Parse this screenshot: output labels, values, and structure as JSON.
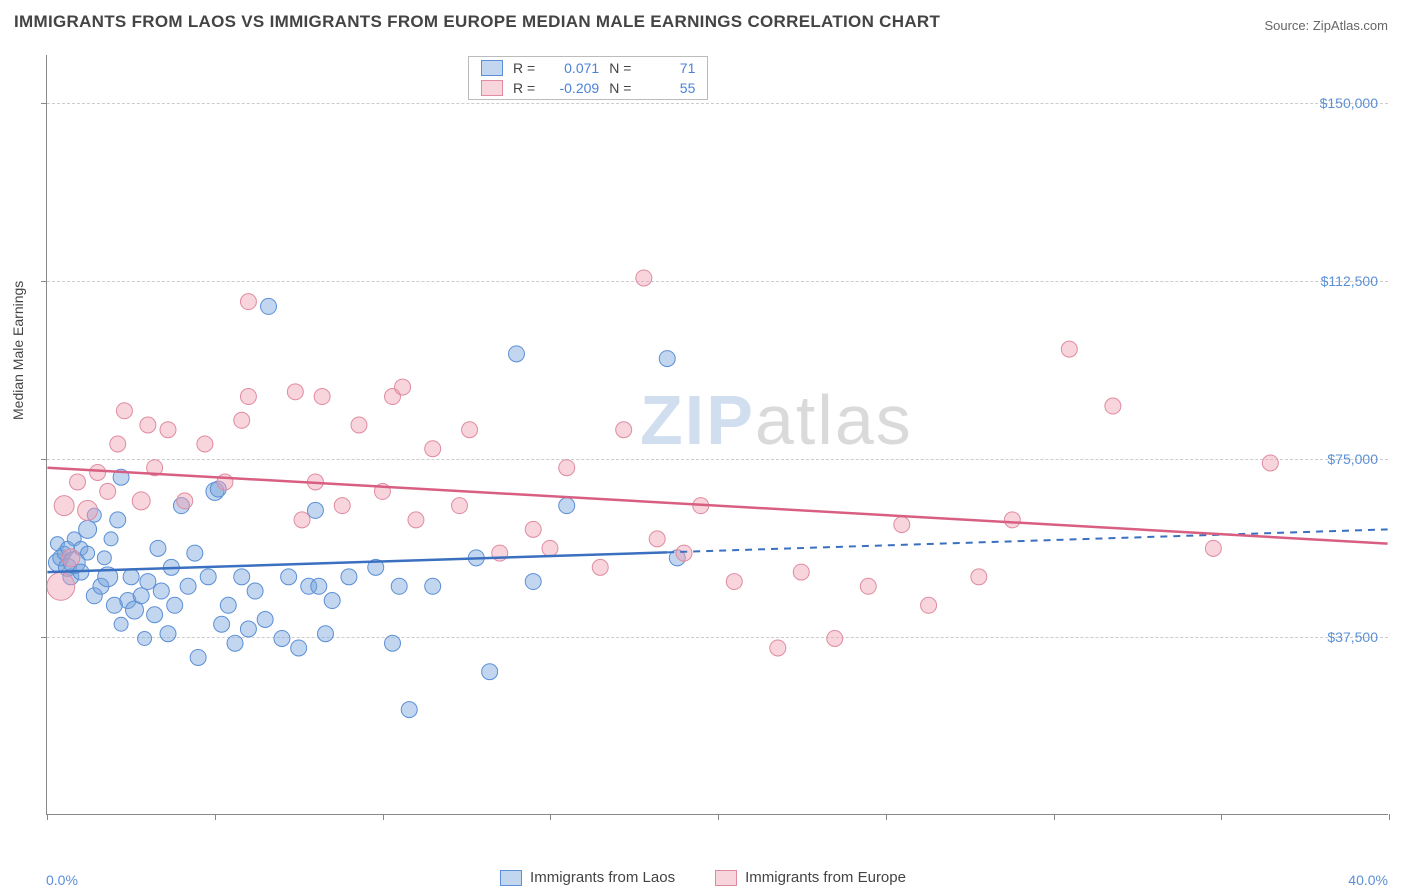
{
  "title": "IMMIGRANTS FROM LAOS VS IMMIGRANTS FROM EUROPE MEDIAN MALE EARNINGS CORRELATION CHART",
  "source_prefix": "Source: ",
  "source_name": "ZipAtlas.com",
  "watermark": {
    "part1": "ZIP",
    "part2": "atlas"
  },
  "y_axis_title": "Median Male Earnings",
  "chart": {
    "type": "scatter",
    "background_color": "#ffffff",
    "grid_color": "#cccccc",
    "axis_color": "#888888",
    "xlim": [
      0,
      40
    ],
    "ylim": [
      0,
      160000
    ],
    "x_ticks_pct": [
      0,
      5,
      10,
      15,
      20,
      25,
      30,
      35,
      40
    ],
    "x_tick_labels": {
      "0": "0.0%",
      "40": "40.0%"
    },
    "y_gridlines": [
      37500,
      75000,
      112500,
      150000
    ],
    "y_labels": [
      "$37,500",
      "$75,000",
      "$112,500",
      "$150,000"
    ],
    "series": [
      {
        "key": "laos",
        "label": "Immigrants from Laos",
        "fill": "rgba(120,165,220,0.45)",
        "stroke": "#5b8fd6",
        "line_color": "#3b6fc0",
        "r_stat": "0.071",
        "n_stat": "71",
        "trend": {
          "y_at_x0": 51000,
          "y_at_x40": 60000,
          "solid_until_x": 18.5
        },
        "points": [
          {
            "x": 0.3,
            "y": 53000,
            "r": 9
          },
          {
            "x": 0.3,
            "y": 57000,
            "r": 7
          },
          {
            "x": 0.4,
            "y": 54000,
            "r": 8
          },
          {
            "x": 0.5,
            "y": 55000,
            "r": 7
          },
          {
            "x": 0.6,
            "y": 52000,
            "r": 9
          },
          {
            "x": 0.6,
            "y": 56000,
            "r": 7
          },
          {
            "x": 0.7,
            "y": 50000,
            "r": 8
          },
          {
            "x": 0.8,
            "y": 58000,
            "r": 7
          },
          {
            "x": 0.8,
            "y": 53000,
            "r": 11
          },
          {
            "x": 1.0,
            "y": 51000,
            "r": 8
          },
          {
            "x": 1.0,
            "y": 56000,
            "r": 7
          },
          {
            "x": 1.2,
            "y": 60000,
            "r": 9
          },
          {
            "x": 1.2,
            "y": 55000,
            "r": 7
          },
          {
            "x": 1.4,
            "y": 46000,
            "r": 8
          },
          {
            "x": 1.4,
            "y": 63000,
            "r": 7
          },
          {
            "x": 1.6,
            "y": 48000,
            "r": 8
          },
          {
            "x": 1.7,
            "y": 54000,
            "r": 7
          },
          {
            "x": 1.8,
            "y": 50000,
            "r": 10
          },
          {
            "x": 1.9,
            "y": 58000,
            "r": 7
          },
          {
            "x": 2.0,
            "y": 44000,
            "r": 8
          },
          {
            "x": 2.1,
            "y": 62000,
            "r": 8
          },
          {
            "x": 2.2,
            "y": 71000,
            "r": 8
          },
          {
            "x": 2.2,
            "y": 40000,
            "r": 7
          },
          {
            "x": 2.4,
            "y": 45000,
            "r": 8
          },
          {
            "x": 2.5,
            "y": 50000,
            "r": 8
          },
          {
            "x": 2.6,
            "y": 43000,
            "r": 9
          },
          {
            "x": 2.8,
            "y": 46000,
            "r": 8
          },
          {
            "x": 2.9,
            "y": 37000,
            "r": 7
          },
          {
            "x": 3.0,
            "y": 49000,
            "r": 8
          },
          {
            "x": 3.2,
            "y": 42000,
            "r": 8
          },
          {
            "x": 3.3,
            "y": 56000,
            "r": 8
          },
          {
            "x": 3.4,
            "y": 47000,
            "r": 8
          },
          {
            "x": 3.6,
            "y": 38000,
            "r": 8
          },
          {
            "x": 3.7,
            "y": 52000,
            "r": 8
          },
          {
            "x": 3.8,
            "y": 44000,
            "r": 8
          },
          {
            "x": 4.0,
            "y": 65000,
            "r": 8
          },
          {
            "x": 4.2,
            "y": 48000,
            "r": 8
          },
          {
            "x": 4.4,
            "y": 55000,
            "r": 8
          },
          {
            "x": 4.5,
            "y": 33000,
            "r": 8
          },
          {
            "x": 4.8,
            "y": 50000,
            "r": 8
          },
          {
            "x": 5.0,
            "y": 68000,
            "r": 9
          },
          {
            "x": 5.1,
            "y": 68500,
            "r": 8
          },
          {
            "x": 5.2,
            "y": 40000,
            "r": 8
          },
          {
            "x": 5.4,
            "y": 44000,
            "r": 8
          },
          {
            "x": 5.6,
            "y": 36000,
            "r": 8
          },
          {
            "x": 5.8,
            "y": 50000,
            "r": 8
          },
          {
            "x": 6.0,
            "y": 39000,
            "r": 8
          },
          {
            "x": 6.2,
            "y": 47000,
            "r": 8
          },
          {
            "x": 6.5,
            "y": 41000,
            "r": 8
          },
          {
            "x": 6.6,
            "y": 107000,
            "r": 8
          },
          {
            "x": 7.0,
            "y": 37000,
            "r": 8
          },
          {
            "x": 7.2,
            "y": 50000,
            "r": 8
          },
          {
            "x": 7.5,
            "y": 35000,
            "r": 8
          },
          {
            "x": 7.8,
            "y": 48000,
            "r": 8
          },
          {
            "x": 8.0,
            "y": 64000,
            "r": 8
          },
          {
            "x": 8.1,
            "y": 48000,
            "r": 8
          },
          {
            "x": 8.3,
            "y": 38000,
            "r": 8
          },
          {
            "x": 8.5,
            "y": 45000,
            "r": 8
          },
          {
            "x": 9.0,
            "y": 50000,
            "r": 8
          },
          {
            "x": 9.8,
            "y": 52000,
            "r": 8
          },
          {
            "x": 10.3,
            "y": 36000,
            "r": 8
          },
          {
            "x": 10.5,
            "y": 48000,
            "r": 8
          },
          {
            "x": 10.8,
            "y": 22000,
            "r": 8
          },
          {
            "x": 11.5,
            "y": 48000,
            "r": 8
          },
          {
            "x": 12.8,
            "y": 54000,
            "r": 8
          },
          {
            "x": 13.2,
            "y": 30000,
            "r": 8
          },
          {
            "x": 14.0,
            "y": 97000,
            "r": 8
          },
          {
            "x": 14.5,
            "y": 49000,
            "r": 8
          },
          {
            "x": 15.5,
            "y": 65000,
            "r": 8
          },
          {
            "x": 18.5,
            "y": 96000,
            "r": 8
          },
          {
            "x": 18.8,
            "y": 54000,
            "r": 8
          }
        ]
      },
      {
        "key": "europe",
        "label": "Immigrants from Europe",
        "fill": "rgba(240,160,180,0.45)",
        "stroke": "#e08ba0",
        "line_color": "#d85f82",
        "r_stat": "-0.209",
        "n_stat": "55",
        "trend": {
          "y_at_x0": 73000,
          "y_at_x40": 57000,
          "solid_until_x": 40
        },
        "points": [
          {
            "x": 0.4,
            "y": 48000,
            "r": 14
          },
          {
            "x": 0.5,
            "y": 65000,
            "r": 10
          },
          {
            "x": 0.7,
            "y": 54000,
            "r": 9
          },
          {
            "x": 0.9,
            "y": 70000,
            "r": 8
          },
          {
            "x": 1.2,
            "y": 64000,
            "r": 10
          },
          {
            "x": 1.5,
            "y": 72000,
            "r": 8
          },
          {
            "x": 1.8,
            "y": 68000,
            "r": 8
          },
          {
            "x": 2.1,
            "y": 78000,
            "r": 8
          },
          {
            "x": 2.3,
            "y": 85000,
            "r": 8
          },
          {
            "x": 2.8,
            "y": 66000,
            "r": 9
          },
          {
            "x": 3.0,
            "y": 82000,
            "r": 8
          },
          {
            "x": 3.2,
            "y": 73000,
            "r": 8
          },
          {
            "x": 3.6,
            "y": 81000,
            "r": 8
          },
          {
            "x": 4.1,
            "y": 66000,
            "r": 8
          },
          {
            "x": 4.7,
            "y": 78000,
            "r": 8
          },
          {
            "x": 5.3,
            "y": 70000,
            "r": 8
          },
          {
            "x": 5.8,
            "y": 83000,
            "r": 8
          },
          {
            "x": 6.0,
            "y": 88000,
            "r": 8
          },
          {
            "x": 6.0,
            "y": 108000,
            "r": 8
          },
          {
            "x": 7.4,
            "y": 89000,
            "r": 8
          },
          {
            "x": 7.6,
            "y": 62000,
            "r": 8
          },
          {
            "x": 8.0,
            "y": 70000,
            "r": 8
          },
          {
            "x": 8.2,
            "y": 88000,
            "r": 8
          },
          {
            "x": 8.8,
            "y": 65000,
            "r": 8
          },
          {
            "x": 9.3,
            "y": 82000,
            "r": 8
          },
          {
            "x": 10.0,
            "y": 68000,
            "r": 8
          },
          {
            "x": 10.3,
            "y": 88000,
            "r": 8
          },
          {
            "x": 10.6,
            "y": 90000,
            "r": 8
          },
          {
            "x": 11.0,
            "y": 62000,
            "r": 8
          },
          {
            "x": 11.5,
            "y": 77000,
            "r": 8
          },
          {
            "x": 12.3,
            "y": 65000,
            "r": 8
          },
          {
            "x": 12.6,
            "y": 81000,
            "r": 8
          },
          {
            "x": 13.5,
            "y": 55000,
            "r": 8
          },
          {
            "x": 14.5,
            "y": 60000,
            "r": 8
          },
          {
            "x": 15.0,
            "y": 56000,
            "r": 8
          },
          {
            "x": 15.5,
            "y": 73000,
            "r": 8
          },
          {
            "x": 16.5,
            "y": 52000,
            "r": 8
          },
          {
            "x": 17.2,
            "y": 81000,
            "r": 8
          },
          {
            "x": 17.8,
            "y": 113000,
            "r": 8
          },
          {
            "x": 18.2,
            "y": 58000,
            "r": 8
          },
          {
            "x": 19.0,
            "y": 55000,
            "r": 8
          },
          {
            "x": 19.5,
            "y": 65000,
            "r": 8
          },
          {
            "x": 20.5,
            "y": 49000,
            "r": 8
          },
          {
            "x": 21.8,
            "y": 35000,
            "r": 8
          },
          {
            "x": 22.5,
            "y": 51000,
            "r": 8
          },
          {
            "x": 23.5,
            "y": 37000,
            "r": 8
          },
          {
            "x": 24.5,
            "y": 48000,
            "r": 8
          },
          {
            "x": 25.5,
            "y": 61000,
            "r": 8
          },
          {
            "x": 26.3,
            "y": 44000,
            "r": 8
          },
          {
            "x": 27.8,
            "y": 50000,
            "r": 8
          },
          {
            "x": 28.8,
            "y": 62000,
            "r": 8
          },
          {
            "x": 30.5,
            "y": 98000,
            "r": 8
          },
          {
            "x": 31.8,
            "y": 86000,
            "r": 8
          },
          {
            "x": 34.8,
            "y": 56000,
            "r": 8
          },
          {
            "x": 36.5,
            "y": 74000,
            "r": 8
          }
        ]
      }
    ]
  },
  "legend_top": {
    "r_label": "R =",
    "n_label": "N ="
  }
}
